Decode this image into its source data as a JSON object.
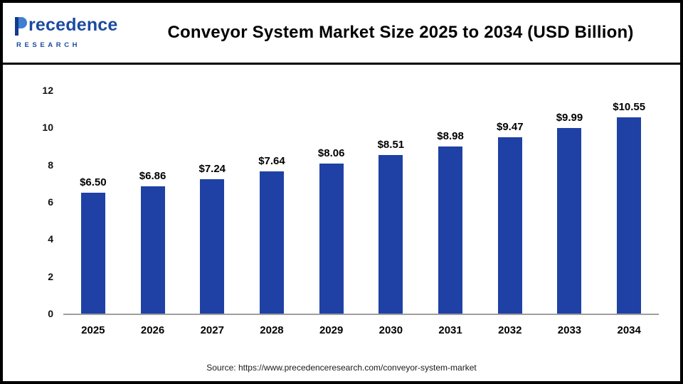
{
  "header": {
    "logo": {
      "name": "Precedence Research logo",
      "word_rest": "recedence",
      "line2": "RESEARCH"
    },
    "title": "Conveyor System Market Size 2025 to 2034 (USD Billion)"
  },
  "chart_data": {
    "type": "bar",
    "title": "Conveyor System Market Size 2025 to 2034 (USD Billion)",
    "categories": [
      "2025",
      "2026",
      "2027",
      "2028",
      "2029",
      "2030",
      "2031",
      "2032",
      "2033",
      "2034"
    ],
    "values": [
      6.5,
      6.86,
      7.24,
      7.64,
      8.06,
      8.51,
      8.98,
      9.47,
      9.99,
      10.55
    ],
    "value_labels": [
      "$6.50",
      "$6.86",
      "$7.24",
      "$7.64",
      "$8.06",
      "$8.51",
      "$8.98",
      "$9.47",
      "$9.99",
      "$10.55"
    ],
    "xlabel": "",
    "ylabel": "",
    "ylim": [
      0,
      12
    ],
    "yticks": [
      0,
      2,
      4,
      6,
      8,
      10,
      12
    ],
    "grid": false,
    "legend_position": "none",
    "bar_color": "#1f41a5"
  },
  "footer": {
    "source": "Source: https://www.precedenceresearch.com/conveyor-system-market"
  }
}
